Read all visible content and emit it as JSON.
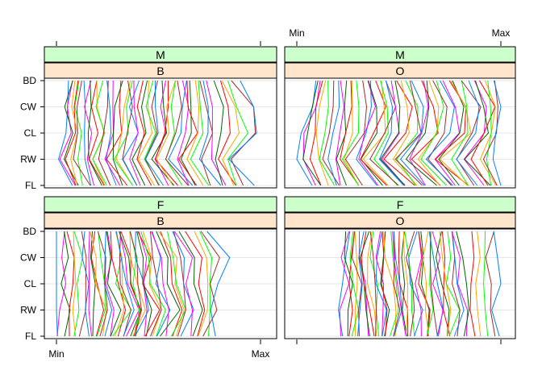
{
  "chart_data": {
    "type": "parallel-coordinates",
    "title": "",
    "variables": [
      "FL",
      "RW",
      "CL",
      "CW",
      "BD"
    ],
    "scale_labels": {
      "min": "Min",
      "max": "Max"
    },
    "grid": true,
    "strip_colors": {
      "sex": "#ccffcc",
      "species": "#ffe5cc"
    },
    "line_colors": [
      "#0080ff",
      "#ff00ff",
      "#006400",
      "#ff0000",
      "#ffa500",
      "#00ff00",
      "#a52a2a"
    ],
    "panels": [
      {
        "sex": "M",
        "species": "B",
        "n_lines": 50,
        "series_sample": [
          [
            0.07,
            0.02,
            0.04,
            0.03,
            0.05
          ],
          [
            0.14,
            0.09,
            0.11,
            0.1,
            0.12
          ],
          [
            0.24,
            0.18,
            0.21,
            0.2,
            0.22
          ],
          [
            0.33,
            0.26,
            0.3,
            0.29,
            0.31
          ],
          [
            0.42,
            0.34,
            0.4,
            0.38,
            0.4
          ],
          [
            0.52,
            0.43,
            0.5,
            0.48,
            0.49
          ],
          [
            0.6,
            0.52,
            0.58,
            0.57,
            0.58
          ],
          [
            0.7,
            0.62,
            0.68,
            0.67,
            0.66
          ],
          [
            0.82,
            0.75,
            0.8,
            0.78,
            0.75
          ],
          [
            0.95,
            0.86,
            1.0,
            0.98,
            0.88
          ]
        ]
      },
      {
        "sex": "M",
        "species": "O",
        "n_lines": 50,
        "series_sample": [
          [
            0.06,
            0.0,
            0.03,
            0.06,
            0.08
          ],
          [
            0.18,
            0.12,
            0.14,
            0.16,
            0.18
          ],
          [
            0.3,
            0.22,
            0.26,
            0.28,
            0.28
          ],
          [
            0.42,
            0.32,
            0.38,
            0.4,
            0.38
          ],
          [
            0.52,
            0.41,
            0.49,
            0.5,
            0.47
          ],
          [
            0.62,
            0.5,
            0.6,
            0.61,
            0.57
          ],
          [
            0.72,
            0.6,
            0.7,
            0.71,
            0.66
          ],
          [
            0.82,
            0.7,
            0.82,
            0.82,
            0.76
          ],
          [
            0.93,
            0.82,
            0.92,
            0.93,
            0.86
          ],
          [
            1.0,
            0.96,
            1.0,
            1.0,
            0.99
          ]
        ]
      },
      {
        "sex": "F",
        "species": "B",
        "n_lines": 50,
        "series_sample": [
          [
            0.0,
            0.0,
            0.0,
            0.0,
            0.0
          ],
          [
            0.12,
            0.13,
            0.12,
            0.12,
            0.11
          ],
          [
            0.2,
            0.23,
            0.2,
            0.21,
            0.18
          ],
          [
            0.27,
            0.31,
            0.28,
            0.28,
            0.25
          ],
          [
            0.33,
            0.38,
            0.34,
            0.34,
            0.31
          ],
          [
            0.39,
            0.44,
            0.4,
            0.4,
            0.37
          ],
          [
            0.46,
            0.51,
            0.46,
            0.46,
            0.43
          ],
          [
            0.55,
            0.6,
            0.55,
            0.55,
            0.51
          ],
          [
            0.66,
            0.7,
            0.66,
            0.68,
            0.6
          ],
          [
            0.76,
            0.78,
            0.8,
            0.84,
            0.76
          ]
        ]
      },
      {
        "sex": "F",
        "species": "O",
        "n_lines": 50,
        "series_sample": [
          [
            0.22,
            0.19,
            0.24,
            0.23,
            0.24
          ],
          [
            0.3,
            0.31,
            0.3,
            0.29,
            0.3
          ],
          [
            0.37,
            0.38,
            0.36,
            0.35,
            0.36
          ],
          [
            0.44,
            0.45,
            0.43,
            0.42,
            0.42
          ],
          [
            0.51,
            0.52,
            0.5,
            0.49,
            0.49
          ],
          [
            0.58,
            0.59,
            0.57,
            0.56,
            0.56
          ],
          [
            0.65,
            0.66,
            0.64,
            0.64,
            0.63
          ],
          [
            0.73,
            0.74,
            0.72,
            0.72,
            0.71
          ],
          [
            0.82,
            0.84,
            0.8,
            0.8,
            0.79
          ],
          [
            1.0,
            0.97,
            0.99,
            0.98,
            0.98
          ]
        ]
      }
    ]
  }
}
